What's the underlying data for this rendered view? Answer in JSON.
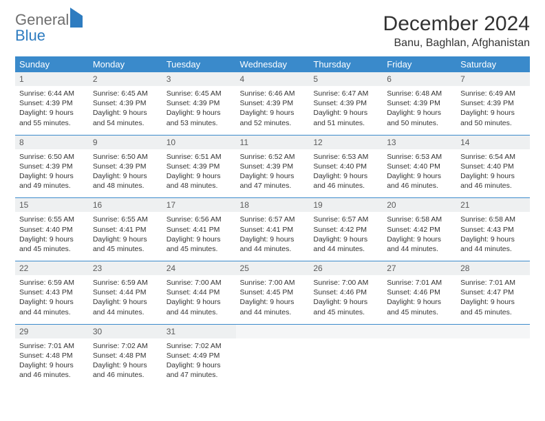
{
  "brand": {
    "general": "General",
    "blue": "Blue"
  },
  "title": "December 2024",
  "location": "Banu, Baghlan, Afghanistan",
  "colors": {
    "header_bg": "#3a8acb",
    "header_fg": "#ffffff",
    "daynum_bg": "#eef0f1",
    "row_border": "#3a8acb",
    "logo_gray": "#6e6e6e",
    "logo_blue": "#2e7cc0",
    "text": "#333333"
  },
  "typography": {
    "month_title_fontsize": 30,
    "location_fontsize": 16,
    "dow_fontsize": 13,
    "daynum_fontsize": 12,
    "body_fontsize": 10.5
  },
  "days_of_week": [
    "Sunday",
    "Monday",
    "Tuesday",
    "Wednesday",
    "Thursday",
    "Friday",
    "Saturday"
  ],
  "weeks": [
    [
      {
        "n": "1",
        "sunrise": "6:44 AM",
        "sunset": "4:39 PM",
        "dl_h": "9",
        "dl_m": "55"
      },
      {
        "n": "2",
        "sunrise": "6:45 AM",
        "sunset": "4:39 PM",
        "dl_h": "9",
        "dl_m": "54"
      },
      {
        "n": "3",
        "sunrise": "6:45 AM",
        "sunset": "4:39 PM",
        "dl_h": "9",
        "dl_m": "53"
      },
      {
        "n": "4",
        "sunrise": "6:46 AM",
        "sunset": "4:39 PM",
        "dl_h": "9",
        "dl_m": "52"
      },
      {
        "n": "5",
        "sunrise": "6:47 AM",
        "sunset": "4:39 PM",
        "dl_h": "9",
        "dl_m": "51"
      },
      {
        "n": "6",
        "sunrise": "6:48 AM",
        "sunset": "4:39 PM",
        "dl_h": "9",
        "dl_m": "50"
      },
      {
        "n": "7",
        "sunrise": "6:49 AM",
        "sunset": "4:39 PM",
        "dl_h": "9",
        "dl_m": "50"
      }
    ],
    [
      {
        "n": "8",
        "sunrise": "6:50 AM",
        "sunset": "4:39 PM",
        "dl_h": "9",
        "dl_m": "49"
      },
      {
        "n": "9",
        "sunrise": "6:50 AM",
        "sunset": "4:39 PM",
        "dl_h": "9",
        "dl_m": "48"
      },
      {
        "n": "10",
        "sunrise": "6:51 AM",
        "sunset": "4:39 PM",
        "dl_h": "9",
        "dl_m": "48"
      },
      {
        "n": "11",
        "sunrise": "6:52 AM",
        "sunset": "4:39 PM",
        "dl_h": "9",
        "dl_m": "47"
      },
      {
        "n": "12",
        "sunrise": "6:53 AM",
        "sunset": "4:40 PM",
        "dl_h": "9",
        "dl_m": "46"
      },
      {
        "n": "13",
        "sunrise": "6:53 AM",
        "sunset": "4:40 PM",
        "dl_h": "9",
        "dl_m": "46"
      },
      {
        "n": "14",
        "sunrise": "6:54 AM",
        "sunset": "4:40 PM",
        "dl_h": "9",
        "dl_m": "46"
      }
    ],
    [
      {
        "n": "15",
        "sunrise": "6:55 AM",
        "sunset": "4:40 PM",
        "dl_h": "9",
        "dl_m": "45"
      },
      {
        "n": "16",
        "sunrise": "6:55 AM",
        "sunset": "4:41 PM",
        "dl_h": "9",
        "dl_m": "45"
      },
      {
        "n": "17",
        "sunrise": "6:56 AM",
        "sunset": "4:41 PM",
        "dl_h": "9",
        "dl_m": "45"
      },
      {
        "n": "18",
        "sunrise": "6:57 AM",
        "sunset": "4:41 PM",
        "dl_h": "9",
        "dl_m": "44"
      },
      {
        "n": "19",
        "sunrise": "6:57 AM",
        "sunset": "4:42 PM",
        "dl_h": "9",
        "dl_m": "44"
      },
      {
        "n": "20",
        "sunrise": "6:58 AM",
        "sunset": "4:42 PM",
        "dl_h": "9",
        "dl_m": "44"
      },
      {
        "n": "21",
        "sunrise": "6:58 AM",
        "sunset": "4:43 PM",
        "dl_h": "9",
        "dl_m": "44"
      }
    ],
    [
      {
        "n": "22",
        "sunrise": "6:59 AM",
        "sunset": "4:43 PM",
        "dl_h": "9",
        "dl_m": "44"
      },
      {
        "n": "23",
        "sunrise": "6:59 AM",
        "sunset": "4:44 PM",
        "dl_h": "9",
        "dl_m": "44"
      },
      {
        "n": "24",
        "sunrise": "7:00 AM",
        "sunset": "4:44 PM",
        "dl_h": "9",
        "dl_m": "44"
      },
      {
        "n": "25",
        "sunrise": "7:00 AM",
        "sunset": "4:45 PM",
        "dl_h": "9",
        "dl_m": "44"
      },
      {
        "n": "26",
        "sunrise": "7:00 AM",
        "sunset": "4:46 PM",
        "dl_h": "9",
        "dl_m": "45"
      },
      {
        "n": "27",
        "sunrise": "7:01 AM",
        "sunset": "4:46 PM",
        "dl_h": "9",
        "dl_m": "45"
      },
      {
        "n": "28",
        "sunrise": "7:01 AM",
        "sunset": "4:47 PM",
        "dl_h": "9",
        "dl_m": "45"
      }
    ],
    [
      {
        "n": "29",
        "sunrise": "7:01 AM",
        "sunset": "4:48 PM",
        "dl_h": "9",
        "dl_m": "46"
      },
      {
        "n": "30",
        "sunrise": "7:02 AM",
        "sunset": "4:48 PM",
        "dl_h": "9",
        "dl_m": "46"
      },
      {
        "n": "31",
        "sunrise": "7:02 AM",
        "sunset": "4:49 PM",
        "dl_h": "9",
        "dl_m": "47"
      },
      null,
      null,
      null,
      null
    ]
  ],
  "labels": {
    "sunrise": "Sunrise: ",
    "sunset": "Sunset: ",
    "daylight_pre": "Daylight: ",
    "hours_and": " hours and ",
    "minutes": " minutes."
  }
}
